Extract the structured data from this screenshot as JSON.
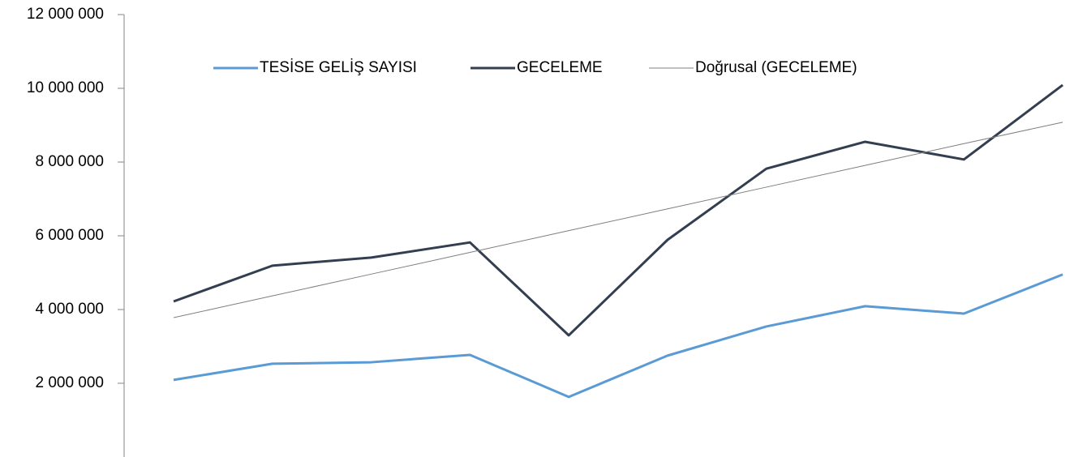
{
  "chart_data": {
    "type": "line",
    "categories": [
      null,
      null,
      null,
      null,
      null,
      null,
      null,
      null,
      null,
      null
    ],
    "series": [
      {
        "name": "TESİSE GELİŞ SAYISI",
        "color": "#5b9bd5",
        "width": 3,
        "values": [
          2090000,
          2530000,
          2570000,
          2770000,
          1630000,
          2750000,
          3540000,
          4090000,
          3890000,
          4950000
        ]
      },
      {
        "name": "GECELEME",
        "color": "#333f50",
        "width": 3,
        "values": [
          4220000,
          5190000,
          5410000,
          5820000,
          3300000,
          5890000,
          7820000,
          8550000,
          8070000,
          10090000
        ]
      },
      {
        "name": "Doğrusal (GECELEME)",
        "color": "#7f7f7f",
        "width": 1,
        "values": [
          3780000,
          4370000,
          4960000,
          5550000,
          6140000,
          6730000,
          7320000,
          7910000,
          8500000,
          9080000
        ]
      }
    ],
    "ylim": [
      0,
      12000000
    ],
    "yticks": [
      {
        "value": 2000000,
        "label": "2 000 000"
      },
      {
        "value": 4000000,
        "label": "4 000 000"
      },
      {
        "value": 6000000,
        "label": "6 000 000"
      },
      {
        "value": 8000000,
        "label": "8 000 000"
      },
      {
        "value": 10000000,
        "label": "10 000 000"
      },
      {
        "value": 12000000,
        "label": "12 000 000"
      }
    ],
    "legend": "top",
    "grid": false
  }
}
